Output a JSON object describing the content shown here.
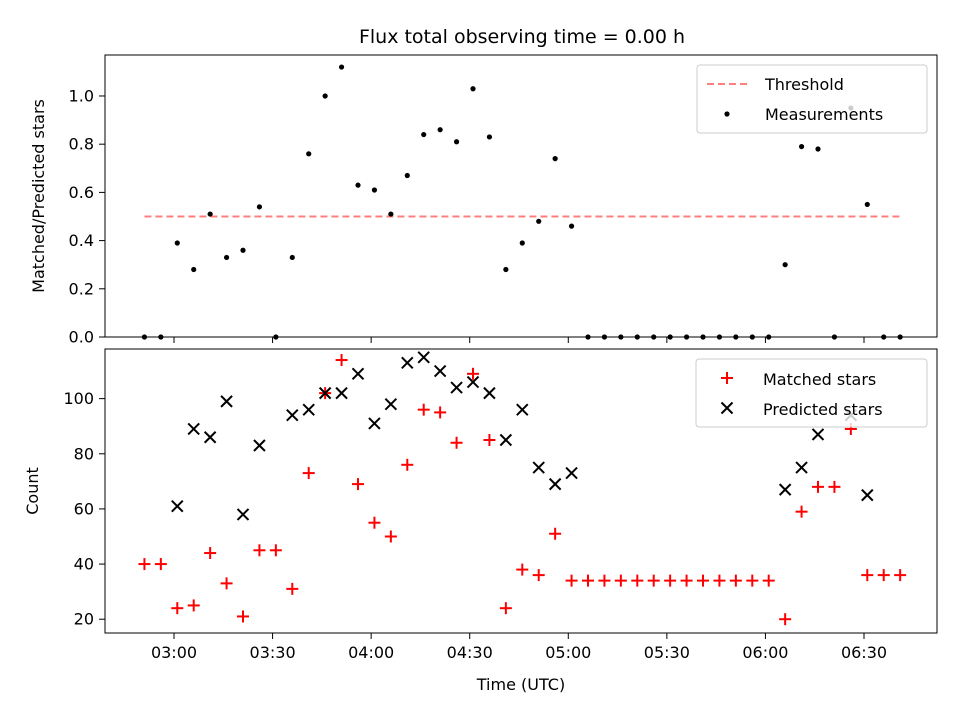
{
  "chart_data": {
    "type": "scatter",
    "title": "Flux total observing time = 0.00 h",
    "xlabel": "Time (UTC)",
    "x_ticks": [
      "03:00",
      "03:30",
      "04:00",
      "04:30",
      "05:00",
      "05:30",
      "06:00",
      "06:30"
    ],
    "panels": [
      {
        "ylabel": "Matched/Predicted stars",
        "ylim": [
          0,
          1.17
        ],
        "y_ticks": [
          "0.0",
          "0.2",
          "0.4",
          "0.6",
          "0.8",
          "1.0"
        ],
        "threshold": {
          "name": "Threshold",
          "value": 0.5,
          "x_range": [
            "02:51",
            "06:41"
          ],
          "color": "#ff7f7f"
        },
        "legend": "top-right",
        "series": [
          {
            "name": "Measurements",
            "color": "#000000",
            "marker": "dot",
            "x": [
              "02:51",
              "02:56",
              "03:01",
              "03:06",
              "03:11",
              "03:16",
              "03:21",
              "03:26",
              "03:31",
              "03:36",
              "03:41",
              "03:46",
              "03:51",
              "03:56",
              "04:01",
              "04:06",
              "04:11",
              "04:16",
              "04:21",
              "04:26",
              "04:31",
              "04:36",
              "04:41",
              "04:46",
              "04:51",
              "04:56",
              "05:01",
              "05:06",
              "05:11",
              "05:16",
              "05:21",
              "05:26",
              "05:31",
              "05:36",
              "05:41",
              "05:46",
              "05:51",
              "05:56",
              "06:01",
              "06:06",
              "06:11",
              "06:16",
              "06:21",
              "06:26",
              "06:31",
              "06:36",
              "06:41"
            ],
            "y": [
              0,
              0,
              0.39,
              0.28,
              0.51,
              0.33,
              0.36,
              0.54,
              0,
              0.33,
              0.76,
              1.0,
              1.12,
              0.63,
              0.61,
              0.51,
              0.67,
              0.84,
              0.86,
              0.81,
              1.03,
              0.83,
              0.28,
              0.39,
              0.48,
              0.74,
              0.46,
              0,
              0,
              0,
              0,
              0,
              0,
              0,
              0,
              0,
              0,
              0,
              0,
              0.3,
              0.79,
              0.78,
              0,
              0.95,
              0.55,
              0,
              0
            ]
          }
        ]
      },
      {
        "ylabel": "Count",
        "ylim": [
          15,
          118
        ],
        "y_ticks": [
          "20",
          "40",
          "60",
          "80",
          "100"
        ],
        "legend": "top-right",
        "series": [
          {
            "name": "Matched stars",
            "color": "#ff0000",
            "marker": "plus",
            "x": [
              "02:51",
              "02:56",
              "03:01",
              "03:06",
              "03:11",
              "03:16",
              "03:21",
              "03:26",
              "03:31",
              "03:36",
              "03:41",
              "03:46",
              "03:51",
              "03:56",
              "04:01",
              "04:06",
              "04:11",
              "04:16",
              "04:21",
              "04:26",
              "04:31",
              "04:36",
              "04:41",
              "04:46",
              "04:51",
              "04:56",
              "05:01",
              "05:06",
              "05:11",
              "05:16",
              "05:21",
              "05:26",
              "05:31",
              "05:36",
              "05:41",
              "05:46",
              "05:51",
              "05:56",
              "06:01",
              "06:06",
              "06:11",
              "06:16",
              "06:21",
              "06:26",
              "06:31",
              "06:36",
              "06:41"
            ],
            "y": [
              40,
              40,
              24,
              25,
              44,
              33,
              21,
              45,
              45,
              31,
              73,
              102,
              114,
              69,
              55,
              50,
              76,
              96,
              95,
              84,
              109,
              85,
              24,
              38,
              36,
              51,
              34,
              34,
              34,
              34,
              34,
              34,
              34,
              34,
              34,
              34,
              34,
              34,
              34,
              20,
              59,
              68,
              68,
              89,
              36,
              36,
              36
            ]
          },
          {
            "name": "Predicted stars",
            "color": "#000000",
            "marker": "x",
            "x": [
              "03:01",
              "03:06",
              "03:11",
              "03:16",
              "03:21",
              "03:26",
              "03:36",
              "03:41",
              "03:46",
              "03:51",
              "03:56",
              "04:01",
              "04:06",
              "04:11",
              "04:16",
              "04:21",
              "04:26",
              "04:31",
              "04:36",
              "04:41",
              "04:46",
              "04:51",
              "04:56",
              "05:01",
              "06:06",
              "06:11",
              "06:16",
              "06:26",
              "06:31"
            ],
            "y": [
              61,
              89,
              86,
              99,
              58,
              83,
              94,
              96,
              102,
              102,
              109,
              91,
              98,
              113,
              115,
              110,
              104,
              106,
              102,
              85,
              96,
              75,
              69,
              73,
              67,
              75,
              87,
              94,
              65
            ]
          }
        ]
      }
    ]
  }
}
